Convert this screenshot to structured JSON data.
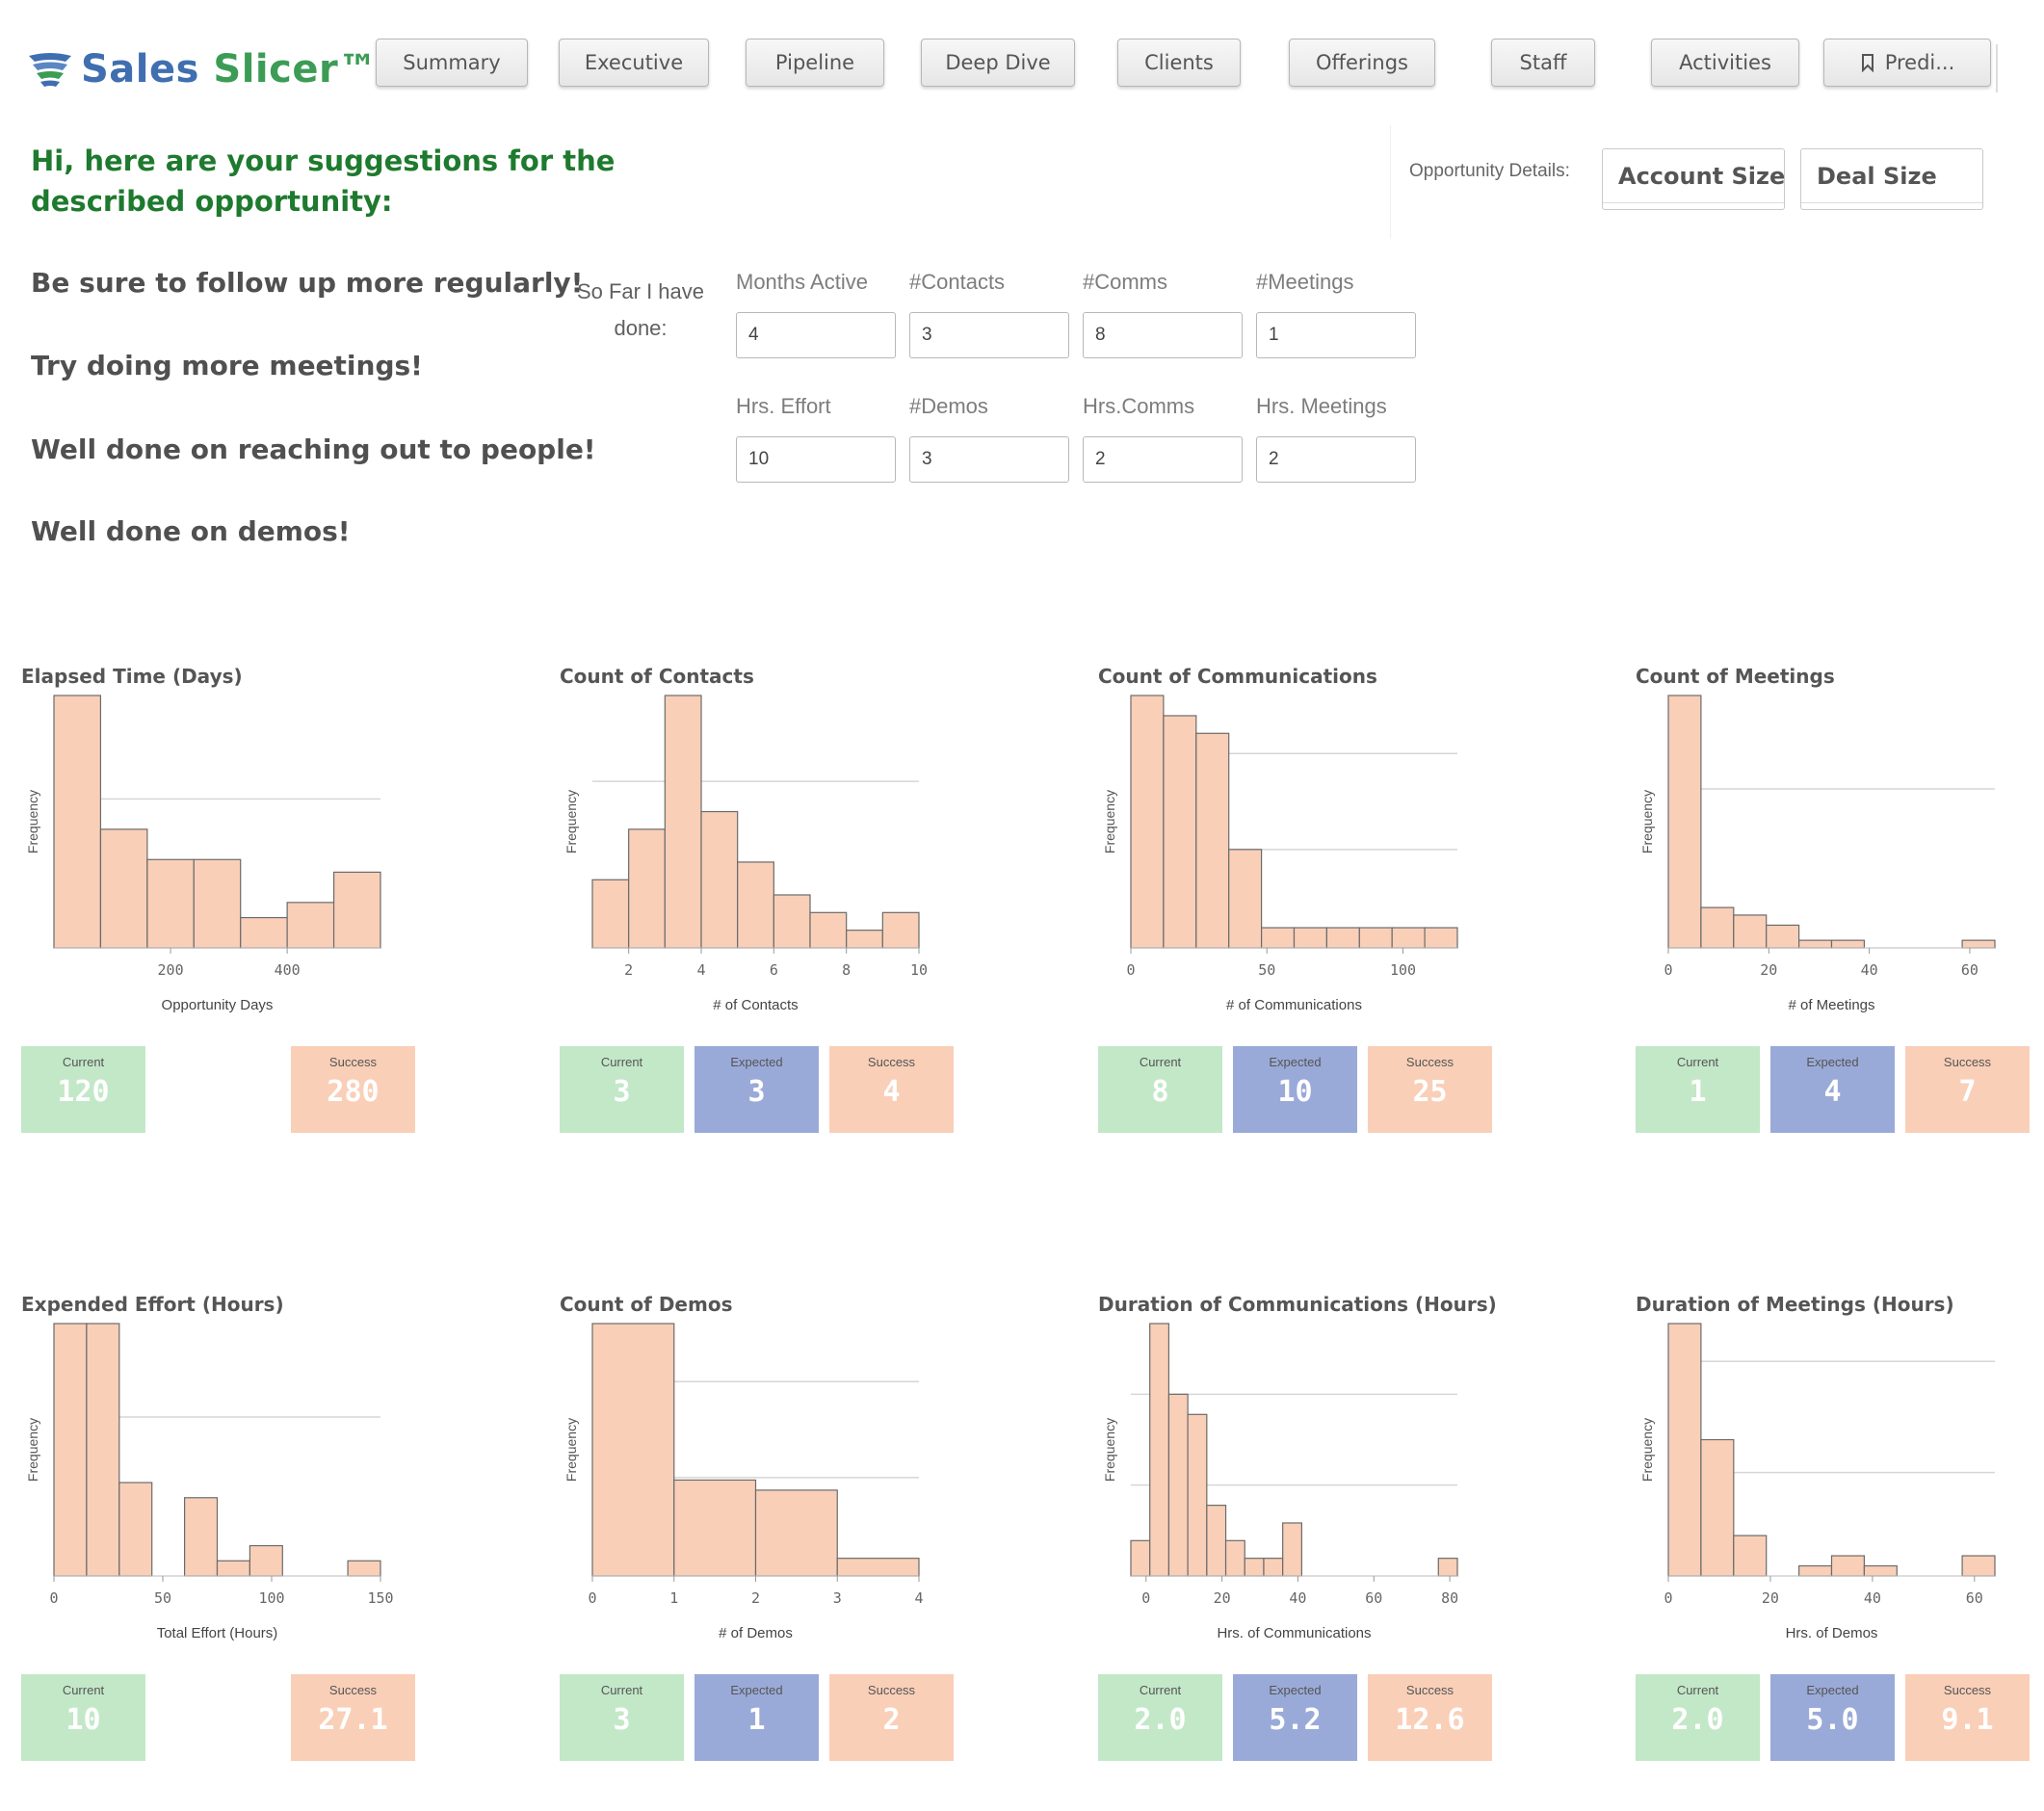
{
  "header": {
    "logo_sales": "Sales",
    "logo_slicer": "Slicer™",
    "nav": [
      "Summary",
      "Executive",
      "Pipeline",
      "Deep Dive",
      "Clients",
      "Offerings",
      "Staff",
      "Activities",
      "Predi..."
    ]
  },
  "greeting": "Hi, here are your suggestions for the described opportunity:",
  "tips": [
    "Be sure to follow up more regularly!",
    "Try doing more meetings!",
    "Well done on reaching out to people!",
    "Well done on demos!"
  ],
  "opportunity": {
    "label": "Opportunity Details:",
    "buttons": [
      "Account Size",
      "Deal Size"
    ]
  },
  "form": {
    "so_far": "So Far I have done:",
    "fields": [
      {
        "label": "Months Active",
        "value": "4"
      },
      {
        "label": "#Contacts",
        "value": "3"
      },
      {
        "label": "#Comms",
        "value": "8"
      },
      {
        "label": "#Meetings",
        "value": "1"
      },
      {
        "label": "Hrs. Effort",
        "value": "10"
      },
      {
        "label": "#Demos",
        "value": "3"
      },
      {
        "label": "Hrs.Comms",
        "value": "2"
      },
      {
        "label": "Hrs. Meetings",
        "value": "2"
      }
    ]
  },
  "colors": {
    "bar_fill": "#f9cfb8",
    "bar_stroke": "#6b6b6b",
    "current": "#c3e8c8",
    "expected": "#9aaad8",
    "success": "#f9cfb8",
    "greeting": "#1e7a2e"
  },
  "chart_data": [
    {
      "type": "bar",
      "title": "Elapsed Time (Days)",
      "xlabel": "Opportunity Days",
      "ylabel": "Frequency",
      "xlim": [
        0,
        560
      ],
      "ticks": [
        200,
        400
      ],
      "ymax": 100,
      "gridlines": [
        59
      ],
      "bins": [
        [
          0,
          80,
          100
        ],
        [
          80,
          160,
          47
        ],
        [
          160,
          240,
          35
        ],
        [
          240,
          320,
          35
        ],
        [
          320,
          400,
          12
        ],
        [
          400,
          480,
          18
        ],
        [
          480,
          560,
          30
        ]
      ],
      "stats": [
        {
          "label": "Current",
          "value": "120",
          "kind": "current",
          "slot": 0
        },
        {
          "label": "Success",
          "value": "280",
          "kind": "success",
          "slot": 2
        }
      ]
    },
    {
      "type": "bar",
      "title": "Count of Contacts",
      "xlabel": "# of Contacts",
      "ylabel": "Frequency",
      "xlim": [
        1,
        10
      ],
      "ticks": [
        2,
        4,
        6,
        8,
        10
      ],
      "ymax": 100,
      "gridlines": [
        66
      ],
      "bins": [
        [
          1,
          2,
          27
        ],
        [
          2,
          3,
          47
        ],
        [
          3,
          4,
          100
        ],
        [
          4,
          5,
          54
        ],
        [
          5,
          6,
          34
        ],
        [
          6,
          7,
          21
        ],
        [
          7,
          8,
          14
        ],
        [
          8,
          9,
          7
        ],
        [
          9,
          10,
          14
        ]
      ],
      "stats": [
        {
          "label": "Current",
          "value": "3",
          "kind": "current",
          "slot": 0
        },
        {
          "label": "Expected",
          "value": "3",
          "kind": "expected",
          "slot": 1
        },
        {
          "label": "Success",
          "value": "4",
          "kind": "success",
          "slot": 2
        }
      ]
    },
    {
      "type": "bar",
      "title": "Count of Communications",
      "xlabel": "# of Communications",
      "ylabel": "Frequency",
      "xlim": [
        0,
        120
      ],
      "ticks": [
        0,
        50,
        100
      ],
      "ymax": 100,
      "gridlines": [
        77,
        39
      ],
      "bins": [
        [
          0,
          12,
          100
        ],
        [
          12,
          24,
          92
        ],
        [
          24,
          36,
          85
        ],
        [
          36,
          48,
          39
        ],
        [
          48,
          60,
          8
        ],
        [
          60,
          72,
          8
        ],
        [
          72,
          84,
          8
        ],
        [
          84,
          96,
          8
        ],
        [
          96,
          108,
          8
        ],
        [
          108,
          120,
          8
        ]
      ],
      "stats": [
        {
          "label": "Current",
          "value": "8",
          "kind": "current",
          "slot": 0
        },
        {
          "label": "Expected",
          "value": "10",
          "kind": "expected",
          "slot": 1
        },
        {
          "label": "Success",
          "value": "25",
          "kind": "success",
          "slot": 2
        }
      ]
    },
    {
      "type": "bar",
      "title": "Count of Meetings",
      "xlabel": "# of Meetings",
      "ylabel": "Frequency",
      "xlim": [
        0,
        65
      ],
      "ticks": [
        0,
        20,
        40,
        60
      ],
      "ymax": 100,
      "gridlines": [
        63
      ],
      "bins": [
        [
          0,
          6.5,
          100
        ],
        [
          6.5,
          13,
          16
        ],
        [
          13,
          19.5,
          13
        ],
        [
          19.5,
          26,
          9
        ],
        [
          26,
          32.5,
          3
        ],
        [
          32.5,
          39,
          3
        ],
        [
          58.5,
          65,
          3
        ]
      ],
      "stats": [
        {
          "label": "Current",
          "value": "1",
          "kind": "current",
          "slot": 0
        },
        {
          "label": "Expected",
          "value": "4",
          "kind": "expected",
          "slot": 1
        },
        {
          "label": "Success",
          "value": "7",
          "kind": "success",
          "slot": 2
        }
      ]
    },
    {
      "type": "bar",
      "title": "Expended Effort (Hours)",
      "xlabel": "Total Effort (Hours)",
      "ylabel": "Frequency",
      "xlim": [
        0,
        150
      ],
      "ticks": [
        0,
        50,
        100,
        150
      ],
      "ymax": 100,
      "gridlines": [
        63
      ],
      "bins": [
        [
          0,
          15,
          100
        ],
        [
          15,
          30,
          100
        ],
        [
          30,
          45,
          37
        ],
        [
          60,
          75,
          31
        ],
        [
          75,
          90,
          6
        ],
        [
          90,
          105,
          12
        ],
        [
          135,
          150,
          6
        ]
      ],
      "stats": [
        {
          "label": "Current",
          "value": "10",
          "kind": "current",
          "slot": 0
        },
        {
          "label": "Success",
          "value": "27.1",
          "kind": "success",
          "slot": 2
        }
      ]
    },
    {
      "type": "bar",
      "title": "Count of Demos",
      "xlabel": "# of Demos",
      "ylabel": "Frequency",
      "xlim": [
        0,
        4
      ],
      "ticks": [
        0,
        1,
        2,
        3,
        4
      ],
      "ymax": 100,
      "gridlines": [
        77,
        39
      ],
      "bins": [
        [
          0,
          1,
          100
        ],
        [
          1,
          2,
          38
        ],
        [
          2,
          3,
          34
        ],
        [
          3,
          4,
          7
        ]
      ],
      "stats": [
        {
          "label": "Current",
          "value": "3",
          "kind": "current",
          "slot": 0
        },
        {
          "label": "Expected",
          "value": "1",
          "kind": "expected",
          "slot": 1
        },
        {
          "label": "Success",
          "value": "2",
          "kind": "success",
          "slot": 2
        }
      ]
    },
    {
      "type": "bar",
      "title": "Duration of Communications (Hours)",
      "xlabel": "Hrs. of Communications",
      "ylabel": "Frequency",
      "xlim": [
        -4,
        82
      ],
      "ticks": [
        0,
        20,
        40,
        60,
        80
      ],
      "ymax": 100,
      "gridlines": [
        72,
        36
      ],
      "bins": [
        [
          -4,
          1,
          14
        ],
        [
          1,
          6,
          100
        ],
        [
          6,
          11,
          72
        ],
        [
          11,
          16,
          64
        ],
        [
          16,
          21,
          28
        ],
        [
          21,
          26,
          14
        ],
        [
          26,
          31,
          7
        ],
        [
          31,
          36,
          7
        ],
        [
          36,
          41,
          21
        ],
        [
          77,
          82,
          7
        ]
      ],
      "stats": [
        {
          "label": "Current",
          "value": "2.0",
          "kind": "current",
          "slot": 0
        },
        {
          "label": "Expected",
          "value": "5.2",
          "kind": "expected",
          "slot": 1
        },
        {
          "label": "Success",
          "value": "12.6",
          "kind": "success",
          "slot": 2
        }
      ]
    },
    {
      "type": "bar",
      "title": "Duration of Meetings (Hours)",
      "xlabel": "Hrs. of Demos",
      "ylabel": "Frequency",
      "xlim": [
        0,
        64
      ],
      "ticks": [
        0,
        20,
        40,
        60
      ],
      "ymax": 100,
      "gridlines": [
        85,
        41
      ],
      "bins": [
        [
          0,
          6.4,
          100
        ],
        [
          6.4,
          12.8,
          54
        ],
        [
          12.8,
          19.2,
          16
        ],
        [
          25.6,
          32,
          4
        ],
        [
          32,
          38.4,
          8
        ],
        [
          38.4,
          44.8,
          4
        ],
        [
          57.6,
          64,
          8
        ]
      ],
      "stats": [
        {
          "label": "Current",
          "value": "2.0",
          "kind": "current",
          "slot": 0
        },
        {
          "label": "Expected",
          "value": "5.0",
          "kind": "expected",
          "slot": 1
        },
        {
          "label": "Success",
          "value": "9.1",
          "kind": "success",
          "slot": 2
        }
      ]
    }
  ]
}
